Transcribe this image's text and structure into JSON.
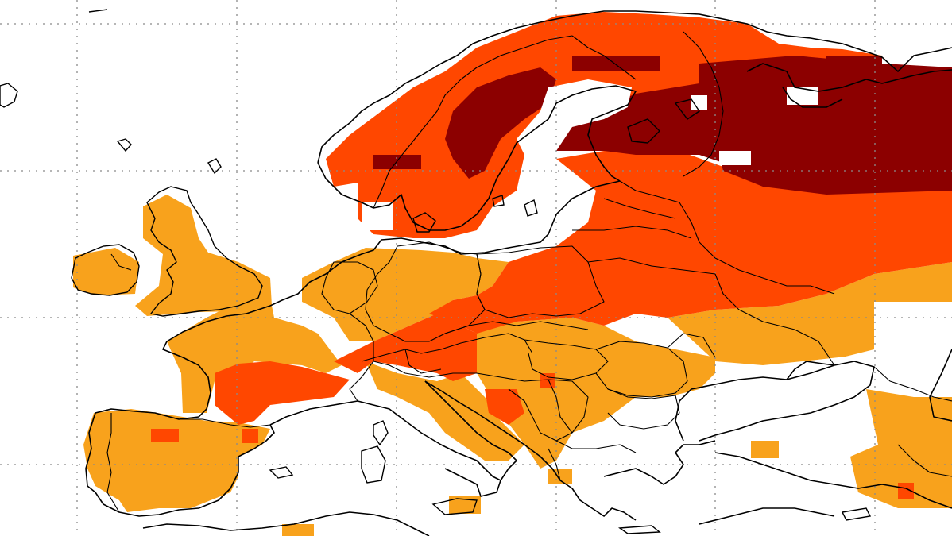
{
  "map": {
    "region": "Europe",
    "colors": {
      "class1": "#f8a21c",
      "class2": "#ff4700",
      "class3": "#8c0000",
      "background": "#ffffff"
    },
    "grid": {
      "style": "dotted",
      "visible": true
    },
    "labels": []
  }
}
